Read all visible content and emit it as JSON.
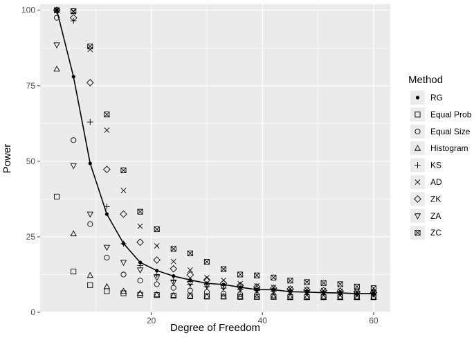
{
  "chart_data": {
    "type": "scatter",
    "title": "",
    "xlabel": "Degree of Freedom",
    "ylabel": "Power",
    "xlim": [
      0,
      63
    ],
    "ylim": [
      0,
      102
    ],
    "x_ticks": [
      20,
      40,
      60
    ],
    "y_ticks": [
      0,
      25,
      50,
      75,
      100
    ],
    "grid": true,
    "legend_title": "Method",
    "legend_position": "right",
    "x": [
      3,
      6,
      9,
      12,
      15,
      18,
      21,
      24,
      27,
      30,
      33,
      36,
      39,
      42,
      45,
      48,
      51,
      54,
      57,
      60
    ],
    "series": [
      {
        "name": "RG",
        "marker": "dot",
        "line": true,
        "values": [
          100,
          78,
          49.3,
          32.5,
          22.8,
          16.5,
          13.8,
          12,
          10.7,
          9.6,
          9.2,
          8.3,
          7.5,
          7.5,
          6.8,
          6.7,
          6.5,
          6.4,
          6.2,
          6.2
        ]
      },
      {
        "name": "Equal Prob",
        "marker": "square",
        "values": [
          38.3,
          13.5,
          9,
          7,
          6.3,
          5.8,
          5.7,
          5.5,
          5.3,
          5.2,
          5.2,
          5.1,
          5.1,
          5.1,
          5,
          5,
          5,
          5,
          5,
          5
        ]
      },
      {
        "name": "Equal Size",
        "marker": "circle",
        "values": [
          97.5,
          57,
          29.2,
          18.1,
          12.5,
          10.5,
          9.3,
          8.1,
          7.2,
          6.7,
          6.2,
          6,
          5.8,
          5.6,
          5.5,
          5.4,
          5.3,
          5.2,
          5.2,
          5.1
        ]
      },
      {
        "name": "Histogram",
        "marker": "triangle-up",
        "values": [
          80.5,
          26,
          12.2,
          8.5,
          7,
          6.3,
          5.9,
          5.6,
          5.4,
          5.3,
          5.2,
          5.2,
          5.1,
          5.1,
          5,
          5,
          5,
          5,
          5,
          5
        ]
      },
      {
        "name": "KS",
        "marker": "plus",
        "values": [
          100,
          96.5,
          63,
          35,
          22.7,
          15.5,
          12.5,
          10.5,
          9.3,
          8.5,
          8,
          7.5,
          7.2,
          7,
          6.8,
          6.6,
          6.4,
          6.3,
          6.2,
          6.1
        ]
      },
      {
        "name": "AD",
        "marker": "cross",
        "values": [
          100,
          99.5,
          87,
          60.3,
          40.3,
          28.5,
          22,
          16.8,
          14,
          11.5,
          10.6,
          9.5,
          8.8,
          8.3,
          7.8,
          7.5,
          7.2,
          7,
          6.8,
          6.6
        ]
      },
      {
        "name": "ZK",
        "marker": "diamond",
        "values": [
          100,
          97.5,
          76,
          47.3,
          32.5,
          23.2,
          17.3,
          14.4,
          12.4,
          10.7,
          9.6,
          8.9,
          8.4,
          8,
          7.7,
          7.4,
          7.2,
          7,
          6.8,
          6.6
        ]
      },
      {
        "name": "ZA",
        "marker": "triangle-down",
        "values": [
          88.5,
          48.5,
          32.5,
          21.5,
          16.5,
          14,
          11.5,
          10,
          9.5,
          8.7,
          8.2,
          7.7,
          7.3,
          7.1,
          6.8,
          6.6,
          6.4,
          6.3,
          6.1,
          6
        ]
      },
      {
        "name": "ZC",
        "marker": "boxed-x",
        "values": [
          100,
          99.7,
          88,
          65.5,
          47,
          33.3,
          27.5,
          21,
          19.5,
          16.7,
          14.3,
          12.5,
          12.2,
          11.5,
          10.5,
          10,
          9.7,
          9.3,
          8.5,
          8
        ]
      }
    ]
  }
}
